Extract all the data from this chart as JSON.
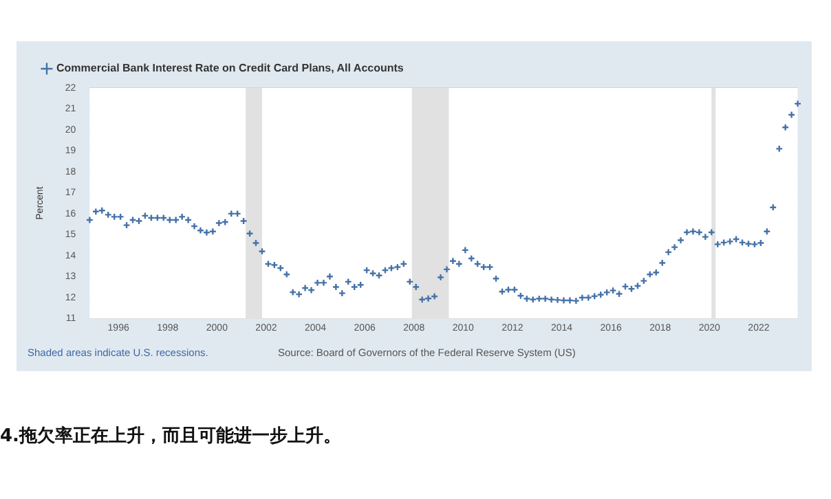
{
  "chart_data": {
    "type": "scatter",
    "ylabel": "Percent",
    "x": [
      "1994-11",
      "1995-02",
      "1995-05",
      "1995-08",
      "1995-11",
      "1996-02",
      "1996-05",
      "1996-08",
      "1996-11",
      "1997-02",
      "1997-05",
      "1997-08",
      "1997-11",
      "1998-02",
      "1998-05",
      "1998-08",
      "1998-11",
      "1999-02",
      "1999-05",
      "1999-08",
      "1999-11",
      "2000-02",
      "2000-05",
      "2000-08",
      "2000-11",
      "2001-02",
      "2001-05",
      "2001-08",
      "2001-11",
      "2002-02",
      "2002-05",
      "2002-08",
      "2002-11",
      "2003-02",
      "2003-05",
      "2003-08",
      "2003-11",
      "2004-02",
      "2004-05",
      "2004-08",
      "2004-11",
      "2005-02",
      "2005-05",
      "2005-08",
      "2005-11",
      "2006-02",
      "2006-05",
      "2006-08",
      "2006-11",
      "2007-02",
      "2007-05",
      "2007-08",
      "2007-11",
      "2008-02",
      "2008-05",
      "2008-08",
      "2008-11",
      "2009-02",
      "2009-05",
      "2009-08",
      "2009-11",
      "2010-02",
      "2010-05",
      "2010-08",
      "2010-11",
      "2011-02",
      "2011-05",
      "2011-08",
      "2011-11",
      "2012-02",
      "2012-05",
      "2012-08",
      "2012-11",
      "2013-02",
      "2013-05",
      "2013-08",
      "2013-11",
      "2014-02",
      "2014-05",
      "2014-08",
      "2014-11",
      "2015-02",
      "2015-05",
      "2015-08",
      "2015-11",
      "2016-02",
      "2016-05",
      "2016-08",
      "2016-11",
      "2017-02",
      "2017-05",
      "2017-08",
      "2017-11",
      "2018-02",
      "2018-05",
      "2018-08",
      "2018-11",
      "2019-02",
      "2019-05",
      "2019-08",
      "2019-11",
      "2020-02",
      "2020-05",
      "2020-08",
      "2020-11",
      "2021-02",
      "2021-05",
      "2021-08",
      "2021-11",
      "2022-02",
      "2022-05",
      "2022-08",
      "2022-11",
      "2023-02",
      "2023-05",
      "2023-08"
    ],
    "series": [
      {
        "name": "Commercial Bank Interest Rate on Credit Card Plans, All Accounts",
        "color": "#4572a7",
        "values": [
          15.7,
          16.1,
          16.15,
          15.95,
          15.85,
          15.85,
          15.45,
          15.7,
          15.65,
          15.9,
          15.8,
          15.8,
          15.8,
          15.7,
          15.7,
          15.85,
          15.7,
          15.4,
          15.2,
          15.1,
          15.15,
          15.55,
          15.6,
          16.0,
          16.0,
          15.65,
          15.05,
          14.6,
          14.2,
          13.6,
          13.55,
          13.4,
          13.1,
          12.25,
          12.15,
          12.45,
          12.35,
          12.7,
          12.7,
          13.0,
          12.5,
          12.2,
          12.75,
          12.5,
          12.6,
          13.3,
          13.15,
          13.05,
          13.3,
          13.4,
          13.45,
          13.6,
          12.75,
          12.5,
          11.9,
          11.95,
          12.05,
          12.96,
          13.34,
          13.74,
          13.6,
          14.26,
          13.86,
          13.6,
          13.45,
          13.45,
          12.9,
          12.28,
          12.37,
          12.37,
          12.08,
          11.94,
          11.9,
          11.94,
          11.94,
          11.9,
          11.88,
          11.86,
          11.86,
          11.84,
          11.99,
          11.99,
          12.06,
          12.13,
          12.24,
          12.33,
          12.17,
          12.52,
          12.41,
          12.55,
          12.79,
          13.1,
          13.19,
          13.65,
          14.16,
          14.4,
          14.73,
          15.11,
          15.15,
          15.11,
          14.89,
          15.11,
          14.54,
          14.62,
          14.67,
          14.78,
          14.62,
          14.56,
          14.54,
          14.6,
          15.15,
          16.3,
          19.1,
          20.12,
          20.72,
          21.25
        ]
      }
    ],
    "xlim": [
      "1994-11",
      "2023-08"
    ],
    "xticks": [
      "1996",
      "1998",
      "2000",
      "2002",
      "2004",
      "2006",
      "2008",
      "2010",
      "2012",
      "2014",
      "2016",
      "2018",
      "2020",
      "2022"
    ],
    "ylim": [
      11,
      22
    ],
    "yticks": [
      11,
      12,
      13,
      14,
      15,
      16,
      17,
      18,
      19,
      20,
      21,
      22
    ],
    "bands": [
      {
        "axis": "x",
        "from": "2001-03",
        "to": "2001-11",
        "color": "#e1e1e1"
      },
      {
        "axis": "x",
        "from": "2007-12",
        "to": "2009-06",
        "color": "#e1e1e1"
      },
      {
        "axis": "x",
        "from": "2020-02",
        "to": "2020-04",
        "color": "#e1e1e1"
      }
    ],
    "annotations": [
      "Shaded areas indicate U.S. recessions.",
      "Source: Board of Governors of the Federal Reserve System (US)",
      "4.拖欠率正在上升，而且可能进一步上升。"
    ],
    "grid": "y",
    "legend": "top left",
    "marker": "cross"
  }
}
